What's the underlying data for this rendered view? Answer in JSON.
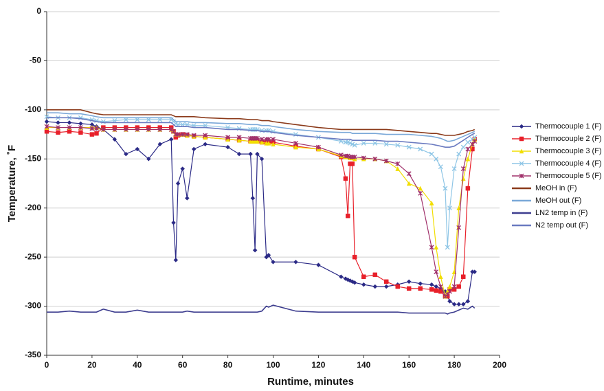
{
  "chart_data": {
    "type": "line",
    "x_label": "Runtime, minutes",
    "y_label": "Temperature, ˚F",
    "xlim": [
      0,
      200
    ],
    "xticks": [
      0,
      20,
      40,
      60,
      80,
      100,
      120,
      140,
      160,
      180,
      200
    ],
    "ylim": [
      -350,
      0
    ],
    "yticks": [
      0,
      -50,
      -100,
      -150,
      -200,
      -250,
      -300,
      -350
    ],
    "grid": true,
    "legend": "right",
    "x": [
      0,
      5,
      10,
      15,
      20,
      22,
      25,
      30,
      35,
      40,
      45,
      50,
      55,
      56,
      57,
      58,
      60,
      62,
      65,
      70,
      80,
      85,
      90,
      91,
      92,
      93,
      95,
      97,
      98,
      100,
      110,
      120,
      130,
      132,
      133,
      134,
      135,
      136,
      140,
      145,
      150,
      155,
      160,
      165,
      170,
      172,
      174,
      176,
      177,
      178,
      180,
      182,
      184,
      186,
      188,
      189
    ],
    "series": [
      {
        "name": "Thermocouple 1 (F)",
        "color": "#2b2a86",
        "marker": "diamond",
        "values": [
          -112,
          -113,
          -113,
          -114,
          -115,
          -117,
          -120,
          -130,
          -145,
          -140,
          -150,
          -135,
          -130,
          -215,
          -253,
          -175,
          -160,
          -190,
          -140,
          -135,
          -138,
          -145,
          -145,
          -190,
          -243,
          -145,
          -150,
          -250,
          -248,
          -255,
          -255,
          -258,
          -270,
          -272,
          -273,
          -274,
          -275,
          -276,
          -278,
          -280,
          -280,
          -278,
          -275,
          -277,
          -278,
          -280,
          -282,
          -285,
          -290,
          -295,
          -298,
          -298,
          -298,
          -295,
          -265,
          -265
        ]
      },
      {
        "name": "Thermocouple 2 (F)",
        "color": "#e8202a",
        "marker": "square",
        "values": [
          -122,
          -123,
          -122,
          -123,
          -125,
          -124,
          -118,
          -118,
          -118,
          -118,
          -118,
          -118,
          -118,
          -122,
          -128,
          -126,
          -125,
          -126,
          -127,
          -128,
          -130,
          -131,
          -132,
          -132,
          -132,
          -132,
          -133,
          -133,
          -133,
          -133,
          -137,
          -140,
          -148,
          -170,
          -208,
          -155,
          -155,
          -250,
          -270,
          -268,
          -275,
          -280,
          -282,
          -282,
          -283,
          -284,
          -285,
          -290,
          -290,
          -283,
          -283,
          -280,
          -270,
          -180,
          -140,
          -130
        ]
      },
      {
        "name": "Thermocouple 3 (F)",
        "color": "#f2de00",
        "marker": "triangle",
        "values": [
          -118,
          -118,
          -118,
          -118,
          -118,
          -118,
          -120,
          -120,
          -120,
          -120,
          -120,
          -120,
          -120,
          -122,
          -125,
          -125,
          -125,
          -126,
          -127,
          -128,
          -130,
          -131,
          -132,
          -132,
          -132,
          -132,
          -133,
          -134,
          -134,
          -135,
          -138,
          -140,
          -147,
          -148,
          -148,
          -149,
          -149,
          -150,
          -150,
          -150,
          -152,
          -160,
          -175,
          -180,
          -195,
          -240,
          -270,
          -290,
          -285,
          -280,
          -265,
          -200,
          -170,
          -150,
          -135,
          -130
        ]
      },
      {
        "name": "Thermocouple 4 (F)",
        "color": "#8fc6e6",
        "marker": "x",
        "values": [
          -107,
          -108,
          -108,
          -108,
          -110,
          -111,
          -112,
          -111,
          -110,
          -110,
          -110,
          -110,
          -110,
          -112,
          -114,
          -115,
          -115,
          -115,
          -116,
          -116,
          -118,
          -119,
          -120,
          -120,
          -120,
          -120,
          -121,
          -121,
          -121,
          -122,
          -125,
          -128,
          -132,
          -133,
          -133,
          -134,
          -135,
          -136,
          -134,
          -134,
          -135,
          -136,
          -138,
          -140,
          -145,
          -150,
          -158,
          -180,
          -240,
          -200,
          -160,
          -145,
          -138,
          -133,
          -130,
          -128
        ]
      },
      {
        "name": "Thermocouple 5 (F)",
        "color": "#a0306a",
        "marker": "star",
        "values": [
          -117,
          -118,
          -118,
          -118,
          -119,
          -119,
          -120,
          -120,
          -120,
          -120,
          -120,
          -120,
          -120,
          -122,
          -125,
          -125,
          -125,
          -125,
          -126,
          -126,
          -128,
          -128,
          -129,
          -129,
          -129,
          -129,
          -130,
          -130,
          -130,
          -130,
          -134,
          -138,
          -146,
          -147,
          -147,
          -148,
          -148,
          -148,
          -149,
          -150,
          -152,
          -155,
          -165,
          -185,
          -240,
          -265,
          -280,
          -290,
          -288,
          -285,
          -280,
          -220,
          -160,
          -140,
          -135,
          -132
        ]
      },
      {
        "name": "MeOH in (F)",
        "color": "#8b3a1a",
        "marker": "none",
        "values": [
          -100,
          -100,
          -100,
          -100,
          -103,
          -104,
          -105,
          -105,
          -105,
          -105,
          -105,
          -105,
          -105,
          -106,
          -107,
          -107,
          -107,
          -107,
          -107,
          -108,
          -109,
          -109,
          -110,
          -110,
          -110,
          -110,
          -111,
          -111,
          -111,
          -112,
          -115,
          -118,
          -120,
          -120,
          -120,
          -120,
          -120,
          -120,
          -120,
          -120,
          -120,
          -121,
          -122,
          -123,
          -124,
          -124,
          -125,
          -126,
          -126,
          -126,
          -126,
          -125,
          -124,
          -122,
          -121,
          -120
        ]
      },
      {
        "name": "MeOH out (F)",
        "color": "#7aa8d8",
        "marker": "none",
        "values": [
          -103,
          -103,
          -104,
          -104,
          -106,
          -107,
          -108,
          -108,
          -108,
          -108,
          -108,
          -108,
          -108,
          -110,
          -112,
          -112,
          -112,
          -112,
          -113,
          -113,
          -114,
          -114,
          -115,
          -115,
          -115,
          -115,
          -116,
          -116,
          -116,
          -117,
          -120,
          -122,
          -123,
          -123,
          -123,
          -123,
          -124,
          -124,
          -124,
          -124,
          -125,
          -125,
          -125,
          -126,
          -127,
          -128,
          -129,
          -131,
          -132,
          -132,
          -131,
          -129,
          -127,
          -125,
          -123,
          -122
        ]
      },
      {
        "name": "LN2 temp in (F)",
        "color": "#3d3d8f",
        "marker": "none",
        "values": [
          -306,
          -306,
          -305,
          -306,
          -306,
          -306,
          -303,
          -306,
          -306,
          -304,
          -306,
          -306,
          -306,
          -306,
          -306,
          -306,
          -306,
          -305,
          -306,
          -306,
          -306,
          -306,
          -306,
          -306,
          -306,
          -306,
          -305,
          -300,
          -301,
          -299,
          -305,
          -306,
          -306,
          -306,
          -306,
          -306,
          -306,
          -306,
          -306,
          -306,
          -306,
          -306,
          -307,
          -307,
          -307,
          -307,
          -307,
          -307,
          -308,
          -307,
          -306,
          -304,
          -302,
          -303,
          -300,
          -302
        ]
      },
      {
        "name": "N2 temp out (F)",
        "color": "#6a7ac0",
        "marker": "none",
        "values": [
          -108,
          -108,
          -108,
          -109,
          -111,
          -112,
          -113,
          -113,
          -113,
          -113,
          -113,
          -113,
          -113,
          -115,
          -117,
          -117,
          -117,
          -117,
          -118,
          -118,
          -120,
          -120,
          -121,
          -121,
          -121,
          -121,
          -122,
          -122,
          -122,
          -123,
          -126,
          -128,
          -130,
          -130,
          -130,
          -130,
          -131,
          -131,
          -131,
          -131,
          -132,
          -132,
          -133,
          -134,
          -135,
          -136,
          -137,
          -138,
          -138,
          -138,
          -137,
          -134,
          -131,
          -128,
          -125,
          -124
        ]
      }
    ]
  }
}
